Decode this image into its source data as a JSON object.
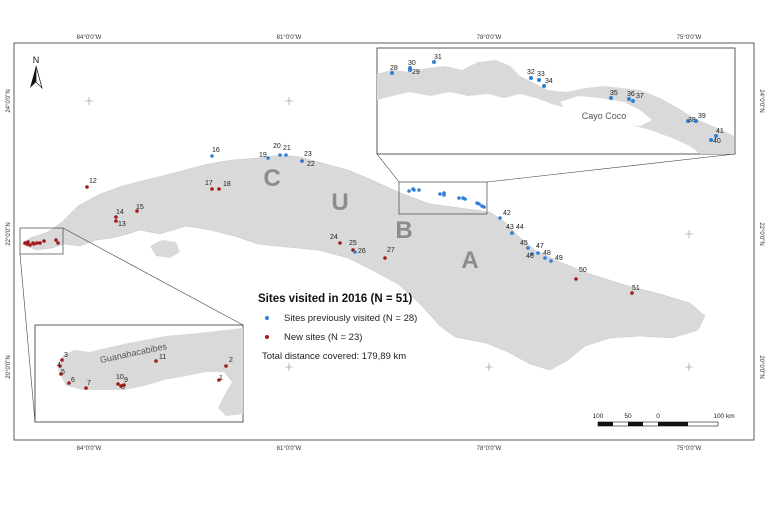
{
  "map": {
    "north_label": "N",
    "country_letters": [
      "C",
      "U",
      "B",
      "A"
    ],
    "ticks_top": [
      "84°0'0\"W",
      "81°0'0\"W",
      "78°0'0\"W",
      "75°0'0\"W"
    ],
    "ticks_bottom": [
      "84°0'0\"W",
      "81°0'0\"W",
      "78°0'0\"W",
      "75°0'0\"W"
    ],
    "ticks_left": [
      "24°0'0\"N",
      "22°0'0\"N",
      "20°0'0\"N"
    ],
    "ticks_right": [
      "24°0'0\"N",
      "22°0'0\"N",
      "20°0'0\"N"
    ],
    "inset_east_label": "Cayo Coco",
    "inset_west_label": "Guanahacabibes",
    "colors": {
      "previous": "#2f7fd6",
      "new": "#a31818",
      "land": "#d9d9d9"
    }
  },
  "legend": {
    "title": "Sites visited in 2016 (N = 51)",
    "previous_label": "Sites previously visited (N = 28)",
    "new_label": "New sites (N = 23)",
    "distance": "Total distance covered: 179,89 km"
  },
  "scale_bar": {
    "labels": [
      "100",
      "50",
      "0",
      "100 km"
    ]
  },
  "sites": {
    "main": [
      {
        "id": "12",
        "type": "new"
      },
      {
        "id": "13",
        "type": "new"
      },
      {
        "id": "14",
        "type": "new"
      },
      {
        "id": "15",
        "type": "new"
      },
      {
        "id": "16",
        "type": "previous"
      },
      {
        "id": "17",
        "type": "new"
      },
      {
        "id": "18",
        "type": "new"
      },
      {
        "id": "19",
        "type": "previous"
      },
      {
        "id": "20",
        "type": "previous"
      },
      {
        "id": "21",
        "type": "previous"
      },
      {
        "id": "22",
        "type": "new"
      },
      {
        "id": "23",
        "type": "previous"
      },
      {
        "id": "24",
        "type": "new"
      },
      {
        "id": "25",
        "type": "new"
      },
      {
        "id": "26",
        "type": "previous"
      },
      {
        "id": "27",
        "type": "new"
      },
      {
        "id": "42",
        "type": "previous"
      },
      {
        "id": "43",
        "type": "previous"
      },
      {
        "id": "44",
        "type": "previous"
      },
      {
        "id": "45",
        "type": "previous"
      },
      {
        "id": "46",
        "type": "previous"
      },
      {
        "id": "47",
        "type": "previous"
      },
      {
        "id": "48",
        "type": "previous"
      },
      {
        "id": "49",
        "type": "previous"
      },
      {
        "id": "50",
        "type": "new"
      },
      {
        "id": "51",
        "type": "new"
      }
    ],
    "inset_east": [
      {
        "id": "28",
        "type": "previous"
      },
      {
        "id": "29",
        "type": "previous"
      },
      {
        "id": "30",
        "type": "previous"
      },
      {
        "id": "31",
        "type": "previous"
      },
      {
        "id": "32",
        "type": "previous"
      },
      {
        "id": "33",
        "type": "previous"
      },
      {
        "id": "34",
        "type": "previous"
      },
      {
        "id": "35",
        "type": "previous"
      },
      {
        "id": "36",
        "type": "previous"
      },
      {
        "id": "37",
        "type": "previous"
      },
      {
        "id": "38",
        "type": "previous"
      },
      {
        "id": "39",
        "type": "previous"
      },
      {
        "id": "40",
        "type": "previous"
      },
      {
        "id": "41",
        "type": "previous"
      }
    ],
    "inset_west": [
      {
        "id": "1",
        "type": "new"
      },
      {
        "id": "2",
        "type": "new"
      },
      {
        "id": "3",
        "type": "new"
      },
      {
        "id": "4",
        "type": "new"
      },
      {
        "id": "5",
        "type": "new"
      },
      {
        "id": "6",
        "type": "new"
      },
      {
        "id": "7",
        "type": "new"
      },
      {
        "id": "8",
        "type": "new"
      },
      {
        "id": "9",
        "type": "new"
      },
      {
        "id": "10",
        "type": "new"
      },
      {
        "id": "11",
        "type": "new"
      }
    ]
  }
}
